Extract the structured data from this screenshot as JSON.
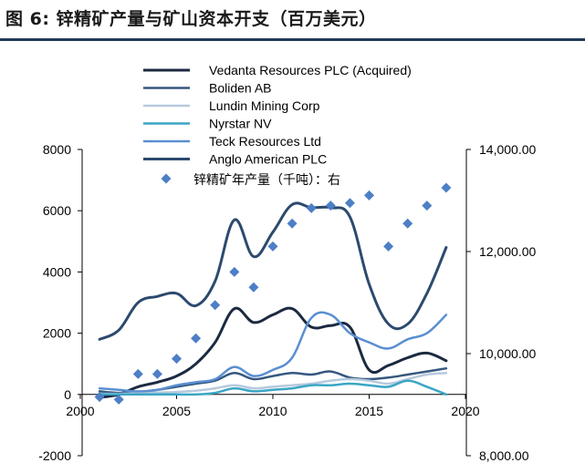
{
  "title": "图 6:  锌精矿产量与矿山资本开支（百万美元）",
  "chart_data": {
    "type": "line",
    "x_ticks": [
      "2000",
      "2005",
      "2010",
      "2015",
      "2020"
    ],
    "xlim": [
      2000,
      2020
    ],
    "y_left_ticks": [
      "-2000",
      "0",
      "2000",
      "4000",
      "6000",
      "8000"
    ],
    "ylim_left": [
      -2000,
      8000
    ],
    "y_right_ticks": [
      "8,000.00",
      "10,000.00",
      "12,000.00",
      "14,000.00"
    ],
    "ylim_right": [
      8000,
      14000
    ],
    "colors": {
      "vedanta": "#1b2a41",
      "boliden": "#35587f",
      "lundin": "#b7c9de",
      "nyrstar": "#3aa6c4",
      "teck": "#5b8fd1",
      "anglo": "#2c4a6e",
      "zinc": "#4d7fc6"
    },
    "series": [
      {
        "key": "vedanta",
        "name": "Vedanta Resources PLC (Acquired)",
        "axis": "left",
        "x": [
          2001,
          2002,
          2003,
          2004,
          2005,
          2006,
          2007,
          2008,
          2009,
          2010,
          2011,
          2012,
          2013,
          2014,
          2015,
          2016,
          2017,
          2018,
          2019
        ],
        "values": [
          -100,
          0,
          250,
          400,
          600,
          1000,
          1700,
          2800,
          2350,
          2600,
          2800,
          2200,
          2250,
          2200,
          800,
          950,
          1200,
          1350,
          1100
        ]
      },
      {
        "key": "boliden",
        "name": "Boliden AB",
        "axis": "left",
        "x": [
          2001,
          2002,
          2003,
          2004,
          2005,
          2006,
          2007,
          2008,
          2009,
          2010,
          2011,
          2012,
          2013,
          2014,
          2015,
          2016,
          2017,
          2018,
          2019
        ],
        "values": [
          100,
          50,
          80,
          150,
          250,
          350,
          450,
          700,
          500,
          600,
          700,
          650,
          750,
          550,
          500,
          550,
          650,
          750,
          850
        ]
      },
      {
        "key": "lundin",
        "name": "Lundin Mining Corp",
        "axis": "left",
        "x": [
          2001,
          2002,
          2003,
          2004,
          2005,
          2006,
          2007,
          2008,
          2009,
          2010,
          2011,
          2012,
          2013,
          2014,
          2015,
          2016,
          2017,
          2018,
          2019
        ],
        "values": [
          20,
          20,
          40,
          60,
          80,
          120,
          200,
          300,
          200,
          250,
          300,
          350,
          450,
          500,
          450,
          350,
          500,
          650,
          700
        ]
      },
      {
        "key": "nyrstar",
        "name": "Nyrstar NV",
        "axis": "left",
        "x": [
          2001,
          2002,
          2003,
          2004,
          2005,
          2006,
          2007,
          2008,
          2009,
          2010,
          2011,
          2012,
          2013,
          2014,
          2015,
          2016,
          2017,
          2018,
          2019
        ],
        "values": [
          0,
          0,
          0,
          0,
          0,
          0,
          50,
          200,
          100,
          150,
          200,
          300,
          300,
          350,
          300,
          250,
          450,
          250,
          0
        ]
      },
      {
        "key": "teck",
        "name": "Teck Resources Ltd",
        "axis": "left",
        "x": [
          2001,
          2002,
          2003,
          2004,
          2005,
          2006,
          2007,
          2008,
          2009,
          2010,
          2011,
          2012,
          2013,
          2014,
          2015,
          2016,
          2017,
          2018,
          2019
        ],
        "values": [
          200,
          150,
          100,
          150,
          300,
          400,
          500,
          900,
          600,
          800,
          1200,
          2500,
          2600,
          2000,
          1700,
          1500,
          1800,
          2000,
          2600
        ]
      },
      {
        "key": "anglo",
        "name": "Anglo American PLC",
        "axis": "left",
        "x": [
          2001,
          2002,
          2003,
          2004,
          2005,
          2006,
          2007,
          2008,
          2009,
          2010,
          2011,
          2012,
          2013,
          2014,
          2015,
          2016,
          2017,
          2018,
          2019
        ],
        "values": [
          1800,
          2100,
          3000,
          3200,
          3300,
          2900,
          3700,
          5700,
          4500,
          5300,
          6200,
          6100,
          6100,
          5800,
          3600,
          2300,
          2300,
          3300,
          4800
        ]
      },
      {
        "key": "zinc",
        "name": "锌精矿年产量（千吨）：右",
        "axis": "right",
        "style": "diamond",
        "x": [
          2001,
          2002,
          2003,
          2004,
          2005,
          2006,
          2007,
          2008,
          2009,
          2010,
          2011,
          2012,
          2013,
          2014,
          2015,
          2016,
          2017,
          2018,
          2019
        ],
        "values": [
          9150,
          9100,
          9600,
          9600,
          9900,
          10300,
          10950,
          11600,
          11300,
          12100,
          12550,
          12850,
          12900,
          12950,
          13100,
          12100,
          12550,
          12900,
          13250
        ]
      }
    ],
    "legend_placement": "top",
    "grid": false
  }
}
